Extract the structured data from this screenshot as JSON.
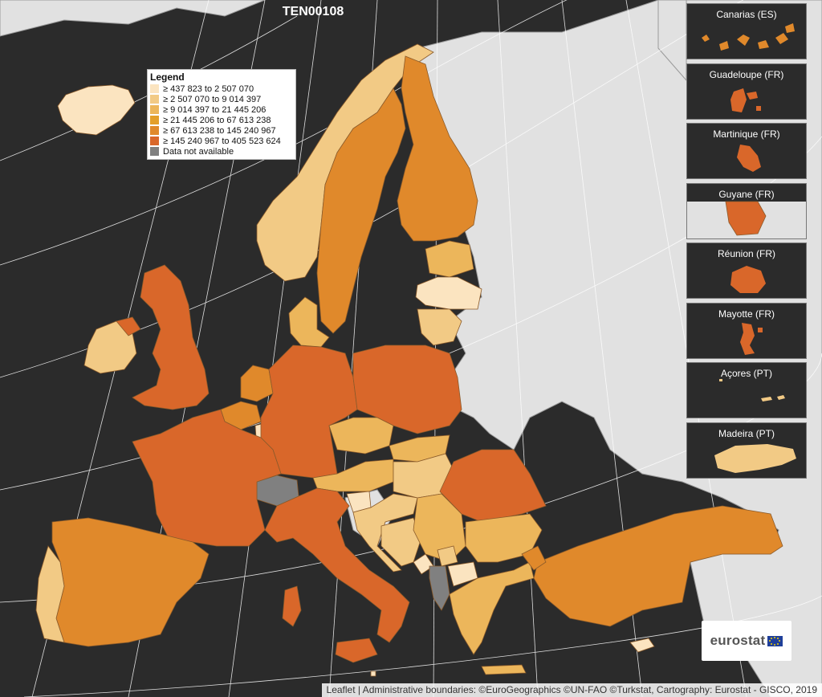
{
  "title": "TEN00108",
  "legend": {
    "heading": "Legend",
    "items": [
      {
        "label": "≥ 437 823 to 2 507 070",
        "color": "#fbe4c0"
      },
      {
        "label": "≥ 2 507 070 to 9 014 397",
        "color": "#f2ca85"
      },
      {
        "label": "≥ 9 014 397 to 21 445 206",
        "color": "#ecb65b"
      },
      {
        "label": "≥ 21 445 206 to 67 613 238",
        "color": "#e39f2b"
      },
      {
        "label": "≥ 67 613 238 to 145 240 967",
        "color": "#e0892b"
      },
      {
        "label": "≥ 145 240 967 to 405 523 624",
        "color": "#d9672a"
      },
      {
        "label": "Data not available",
        "color": "#808080"
      }
    ]
  },
  "insets": [
    {
      "label": "Canarias (ES)"
    },
    {
      "label": "Guadeloupe (FR)"
    },
    {
      "label": "Martinique (FR)"
    },
    {
      "label": "Guyane (FR)"
    },
    {
      "label": "Réunion (FR)"
    },
    {
      "label": "Mayotte (FR)"
    },
    {
      "label": "Açores (PT)"
    },
    {
      "label": "Madeira (PT)"
    }
  ],
  "logo": {
    "text": "eurostat"
  },
  "attribution": {
    "leaflet": "Leaflet",
    "rest": " | Administrative boundaries: ©EuroGeographics ©UN-FAO ©Turkstat, Cartography: Eurostat - GISCO, 2019"
  },
  "colors": {
    "sea": "#2b2b2b",
    "non_eu_land": "#e1e1e1",
    "graticule": "#ffffff"
  }
}
